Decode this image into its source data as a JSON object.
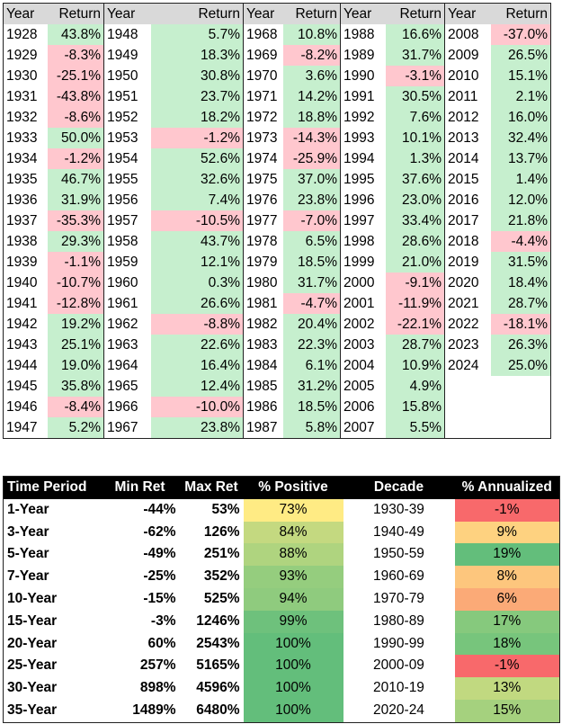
{
  "header": {
    "year": "Year",
    "return": "Return"
  },
  "groups": [
    {
      "rows": [
        {
          "year": "1928",
          "ret": "43.8%",
          "pos": true
        },
        {
          "year": "1929",
          "ret": "-8.3%",
          "pos": false
        },
        {
          "year": "1930",
          "ret": "-25.1%",
          "pos": false
        },
        {
          "year": "1931",
          "ret": "-43.8%",
          "pos": false
        },
        {
          "year": "1932",
          "ret": "-8.6%",
          "pos": false
        },
        {
          "year": "1933",
          "ret": "50.0%",
          "pos": true
        },
        {
          "year": "1934",
          "ret": "-1.2%",
          "pos": false
        },
        {
          "year": "1935",
          "ret": "46.7%",
          "pos": true
        },
        {
          "year": "1936",
          "ret": "31.9%",
          "pos": true
        },
        {
          "year": "1937",
          "ret": "-35.3%",
          "pos": false
        },
        {
          "year": "1938",
          "ret": "29.3%",
          "pos": true
        },
        {
          "year": "1939",
          "ret": "-1.1%",
          "pos": false
        },
        {
          "year": "1940",
          "ret": "-10.7%",
          "pos": false
        },
        {
          "year": "1941",
          "ret": "-12.8%",
          "pos": false
        },
        {
          "year": "1942",
          "ret": "19.2%",
          "pos": true
        },
        {
          "year": "1943",
          "ret": "25.1%",
          "pos": true
        },
        {
          "year": "1944",
          "ret": "19.0%",
          "pos": true
        },
        {
          "year": "1945",
          "ret": "35.8%",
          "pos": true
        },
        {
          "year": "1946",
          "ret": "-8.4%",
          "pos": false
        },
        {
          "year": "1947",
          "ret": "5.2%",
          "pos": true
        }
      ]
    },
    {
      "rows": [
        {
          "year": "1948",
          "ret": "5.7%",
          "pos": true
        },
        {
          "year": "1949",
          "ret": "18.3%",
          "pos": true
        },
        {
          "year": "1950",
          "ret": "30.8%",
          "pos": true
        },
        {
          "year": "1951",
          "ret": "23.7%",
          "pos": true
        },
        {
          "year": "1952",
          "ret": "18.2%",
          "pos": true
        },
        {
          "year": "1953",
          "ret": "-1.2%",
          "pos": false
        },
        {
          "year": "1954",
          "ret": "52.6%",
          "pos": true
        },
        {
          "year": "1955",
          "ret": "32.6%",
          "pos": true
        },
        {
          "year": "1956",
          "ret": "7.4%",
          "pos": true
        },
        {
          "year": "1957",
          "ret": "-10.5%",
          "pos": false
        },
        {
          "year": "1958",
          "ret": "43.7%",
          "pos": true
        },
        {
          "year": "1959",
          "ret": "12.1%",
          "pos": true
        },
        {
          "year": "1960",
          "ret": "0.3%",
          "pos": true
        },
        {
          "year": "1961",
          "ret": "26.6%",
          "pos": true
        },
        {
          "year": "1962",
          "ret": "-8.8%",
          "pos": false
        },
        {
          "year": "1963",
          "ret": "22.6%",
          "pos": true
        },
        {
          "year": "1964",
          "ret": "16.4%",
          "pos": true
        },
        {
          "year": "1965",
          "ret": "12.4%",
          "pos": true
        },
        {
          "year": "1966",
          "ret": "-10.0%",
          "pos": false
        },
        {
          "year": "1967",
          "ret": "23.8%",
          "pos": true
        }
      ]
    },
    {
      "rows": [
        {
          "year": "1968",
          "ret": "10.8%",
          "pos": true
        },
        {
          "year": "1969",
          "ret": "-8.2%",
          "pos": false
        },
        {
          "year": "1970",
          "ret": "3.6%",
          "pos": true
        },
        {
          "year": "1971",
          "ret": "14.2%",
          "pos": true
        },
        {
          "year": "1972",
          "ret": "18.8%",
          "pos": true
        },
        {
          "year": "1973",
          "ret": "-14.3%",
          "pos": false
        },
        {
          "year": "1974",
          "ret": "-25.9%",
          "pos": false
        },
        {
          "year": "1975",
          "ret": "37.0%",
          "pos": true
        },
        {
          "year": "1976",
          "ret": "23.8%",
          "pos": true
        },
        {
          "year": "1977",
          "ret": "-7.0%",
          "pos": false
        },
        {
          "year": "1978",
          "ret": "6.5%",
          "pos": true
        },
        {
          "year": "1979",
          "ret": "18.5%",
          "pos": true
        },
        {
          "year": "1980",
          "ret": "31.7%",
          "pos": true
        },
        {
          "year": "1981",
          "ret": "-4.7%",
          "pos": false
        },
        {
          "year": "1982",
          "ret": "20.4%",
          "pos": true
        },
        {
          "year": "1983",
          "ret": "22.3%",
          "pos": true
        },
        {
          "year": "1984",
          "ret": "6.1%",
          "pos": true
        },
        {
          "year": "1985",
          "ret": "31.2%",
          "pos": true
        },
        {
          "year": "1986",
          "ret": "18.5%",
          "pos": true
        },
        {
          "year": "1987",
          "ret": "5.8%",
          "pos": true
        }
      ]
    },
    {
      "rows": [
        {
          "year": "1988",
          "ret": "16.6%",
          "pos": true
        },
        {
          "year": "1989",
          "ret": "31.7%",
          "pos": true
        },
        {
          "year": "1990",
          "ret": "-3.1%",
          "pos": false
        },
        {
          "year": "1991",
          "ret": "30.5%",
          "pos": true
        },
        {
          "year": "1992",
          "ret": "7.6%",
          "pos": true
        },
        {
          "year": "1993",
          "ret": "10.1%",
          "pos": true
        },
        {
          "year": "1994",
          "ret": "1.3%",
          "pos": true
        },
        {
          "year": "1995",
          "ret": "37.6%",
          "pos": true
        },
        {
          "year": "1996",
          "ret": "23.0%",
          "pos": true
        },
        {
          "year": "1997",
          "ret": "33.4%",
          "pos": true
        },
        {
          "year": "1998",
          "ret": "28.6%",
          "pos": true
        },
        {
          "year": "1999",
          "ret": "21.0%",
          "pos": true
        },
        {
          "year": "2000",
          "ret": "-9.1%",
          "pos": false
        },
        {
          "year": "2001",
          "ret": "-11.9%",
          "pos": false
        },
        {
          "year": "2002",
          "ret": "-22.1%",
          "pos": false
        },
        {
          "year": "2003",
          "ret": "28.7%",
          "pos": true
        },
        {
          "year": "2004",
          "ret": "10.9%",
          "pos": true
        },
        {
          "year": "2005",
          "ret": "4.9%",
          "pos": true
        },
        {
          "year": "2006",
          "ret": "15.8%",
          "pos": true
        },
        {
          "year": "2007",
          "ret": "5.5%",
          "pos": true
        }
      ]
    },
    {
      "rows": [
        {
          "year": "2008",
          "ret": "-37.0%",
          "pos": false
        },
        {
          "year": "2009",
          "ret": "26.5%",
          "pos": true
        },
        {
          "year": "2010",
          "ret": "15.1%",
          "pos": true
        },
        {
          "year": "2011",
          "ret": "2.1%",
          "pos": true
        },
        {
          "year": "2012",
          "ret": "16.0%",
          "pos": true
        },
        {
          "year": "2013",
          "ret": "32.4%",
          "pos": true
        },
        {
          "year": "2014",
          "ret": "13.7%",
          "pos": true
        },
        {
          "year": "2015",
          "ret": "1.4%",
          "pos": true
        },
        {
          "year": "2016",
          "ret": "12.0%",
          "pos": true
        },
        {
          "year": "2017",
          "ret": "21.8%",
          "pos": true
        },
        {
          "year": "2018",
          "ret": "-4.4%",
          "pos": false
        },
        {
          "year": "2019",
          "ret": "31.5%",
          "pos": true
        },
        {
          "year": "2020",
          "ret": "18.4%",
          "pos": true
        },
        {
          "year": "2021",
          "ret": "28.7%",
          "pos": true
        },
        {
          "year": "2022",
          "ret": "-18.1%",
          "pos": false
        },
        {
          "year": "2023",
          "ret": "26.3%",
          "pos": true
        },
        {
          "year": "2024",
          "ret": "25.0%",
          "pos": true
        }
      ]
    }
  ],
  "summary": {
    "headers": {
      "time_period": "Time Period",
      "min_ret": "Min Ret",
      "max_ret": "Max Ret",
      "pct_positive": "% Positive",
      "decade": "Decade",
      "pct_annualized": "% Annualized"
    },
    "rows": [
      {
        "period": "1-Year",
        "min": "-44%",
        "max": "53%",
        "positive": "73%",
        "positive_color": "#ffeb84",
        "decade": "1930-39",
        "annualized": "-1%",
        "annualized_color": "#f8696b"
      },
      {
        "period": "3-Year",
        "min": "-62%",
        "max": "126%",
        "positive": "84%",
        "positive_color": "#c4d980",
        "decade": "1940-49",
        "annualized": "9%",
        "annualized_color": "#fed280"
      },
      {
        "period": "5-Year",
        "min": "-49%",
        "max": "251%",
        "positive": "88%",
        "positive_color": "#afd47f",
        "decade": "1950-59",
        "annualized": "19%",
        "annualized_color": "#63be7b"
      },
      {
        "period": "7-Year",
        "min": "-25%",
        "max": "352%",
        "positive": "93%",
        "positive_color": "#95cd7e",
        "decade": "1960-69",
        "annualized": "8%",
        "annualized_color": "#fdc67d"
      },
      {
        "period": "10-Year",
        "min": "-15%",
        "max": "525%",
        "positive": "94%",
        "positive_color": "#8fcb7e",
        "decade": "1970-79",
        "annualized": "6%",
        "annualized_color": "#fbaa77"
      },
      {
        "period": "15-Year",
        "min": "-3%",
        "max": "1246%",
        "positive": "99%",
        "positive_color": "#6ec17c",
        "decade": "1980-89",
        "annualized": "17%",
        "annualized_color": "#86c97d"
      },
      {
        "period": "20-Year",
        "min": "60%",
        "max": "2543%",
        "positive": "100%",
        "positive_color": "#63be7b",
        "decade": "1990-99",
        "annualized": "18%",
        "annualized_color": "#77c57c"
      },
      {
        "period": "25-Year",
        "min": "257%",
        "max": "5165%",
        "positive": "100%",
        "positive_color": "#63be7b",
        "decade": "2000-09",
        "annualized": "-1%",
        "annualized_color": "#f8696b"
      },
      {
        "period": "30-Year",
        "min": "898%",
        "max": "4596%",
        "positive": "100%",
        "positive_color": "#63be7b",
        "decade": "2010-19",
        "annualized": "13%",
        "annualized_color": "#c1d980"
      },
      {
        "period": "35-Year",
        "min": "1489%",
        "max": "6480%",
        "positive": "100%",
        "positive_color": "#63be7b",
        "decade": "2020-24",
        "annualized": "15%",
        "annualized_color": "#a5d17e"
      }
    ]
  },
  "colors": {
    "positive_fill": "#c6efce",
    "negative_fill": "#ffc7ce",
    "header_fill": "#d9d9d9",
    "summary_header_fill": "#000000"
  }
}
